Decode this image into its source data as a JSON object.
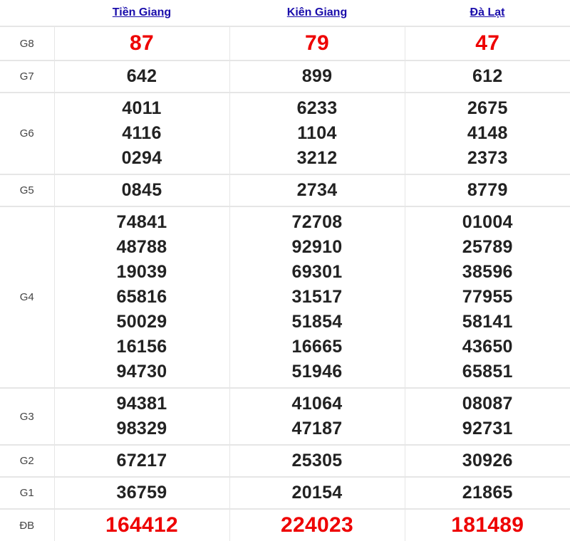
{
  "provinces": [
    "Tiền Giang",
    "Kiên Giang",
    "Đà Lạt"
  ],
  "accent_red": "#e00000",
  "link_color": "#1a0dab",
  "prizes": [
    {
      "label": "G8",
      "highlight": true,
      "values": [
        [
          "87"
        ],
        [
          "79"
        ],
        [
          "47"
        ]
      ]
    },
    {
      "label": "G7",
      "highlight": false,
      "values": [
        [
          "642"
        ],
        [
          "899"
        ],
        [
          "612"
        ]
      ]
    },
    {
      "label": "G6",
      "highlight": false,
      "values": [
        [
          "4011",
          "4116",
          "0294"
        ],
        [
          "6233",
          "1104",
          "3212"
        ],
        [
          "2675",
          "4148",
          "2373"
        ]
      ]
    },
    {
      "label": "G5",
      "highlight": false,
      "values": [
        [
          "0845"
        ],
        [
          "2734"
        ],
        [
          "8779"
        ]
      ]
    },
    {
      "label": "G4",
      "highlight": false,
      "values": [
        [
          "74841",
          "48788",
          "19039",
          "65816",
          "50029",
          "16156",
          "94730"
        ],
        [
          "72708",
          "92910",
          "69301",
          "31517",
          "51854",
          "16665",
          "51946"
        ],
        [
          "01004",
          "25789",
          "38596",
          "77955",
          "58141",
          "43650",
          "65851"
        ]
      ]
    },
    {
      "label": "G3",
      "highlight": false,
      "values": [
        [
          "94381",
          "98329"
        ],
        [
          "41064",
          "47187"
        ],
        [
          "08087",
          "92731"
        ]
      ]
    },
    {
      "label": "G2",
      "highlight": false,
      "values": [
        [
          "67217"
        ],
        [
          "25305"
        ],
        [
          "30926"
        ]
      ]
    },
    {
      "label": "G1",
      "highlight": false,
      "values": [
        [
          "36759"
        ],
        [
          "20154"
        ],
        [
          "21865"
        ]
      ]
    },
    {
      "label": "ĐB",
      "highlight": true,
      "values": [
        [
          "164412"
        ],
        [
          "224023"
        ],
        [
          "181489"
        ]
      ]
    }
  ]
}
